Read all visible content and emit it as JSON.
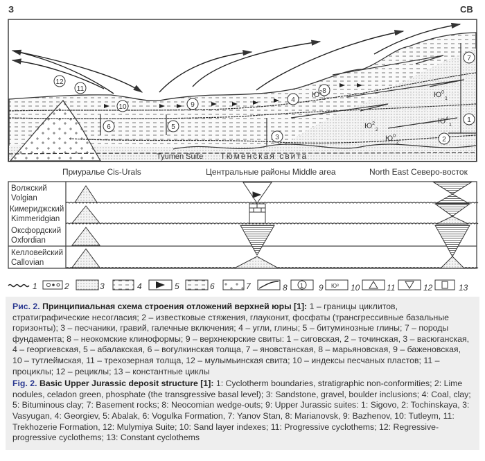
{
  "section": {
    "west_label": "З",
    "northeast_label": "СВ",
    "tyumen_en": "Tyumen Suite",
    "tyumen_ru": "Тюменская свита",
    "circled_labels": [
      "12",
      "11",
      "10",
      "9",
      "4",
      "8",
      "7",
      "1",
      "2",
      "3",
      "5",
      "6"
    ],
    "index_labels": [
      {
        "base": "Ю",
        "sup": "2",
        "sub": "1"
      },
      {
        "base": "Ю",
        "sup": "0",
        "sub": "1"
      },
      {
        "base": "Ю",
        "sup": "2",
        "sub": "2"
      },
      {
        "base": "Ю",
        "sup": "0",
        "sub": "2"
      },
      {
        "base": "Ю",
        "sup": "4",
        "sub": "1"
      }
    ]
  },
  "regions": {
    "cis_urals": "Приуралье Cis-Urals",
    "middle": "Центральные районы Middle area",
    "north_east": "North East Северо-восток"
  },
  "stages": [
    {
      "ru": "Волжский",
      "en": "Volgian"
    },
    {
      "ru": "Кимериджский",
      "en": "Kimmeridgian"
    },
    {
      "ru": "Оксфордский",
      "en": "Oxfordian"
    },
    {
      "ru": "Келловейский",
      "en": "Callovian"
    }
  ],
  "legend": [
    "1",
    "2",
    "3",
    "4",
    "5",
    "6",
    "7",
    "8",
    "9",
    "10",
    "11",
    "12",
    "13"
  ],
  "legend_glyphs": {
    "item9": "1",
    "item10": "Ю³"
  },
  "caption_ru": {
    "fig_no": "Рис. 2.",
    "title": "Принципиальная схема строения отложений верхней юры [1]:",
    "body": "1 – границы циклитов, стратиграфические несогласия; 2 – известковые стяжения, глауконит, фосфаты (трансгрессивные базальные горизонты); 3 – песчаники, гравий, галечные включения; 4 – угли, глины; 5 – битуминозные глины; 7 – породы фундамента; 8 – неокомские клиноформы; 9 – верхнеюрские свиты: 1 – сиговская, 2 – точинская, 3 – васюганская, 4 – георгиевская, 5 – абалакская, 6 – вогулкинская толща, 7 – яновстанская, 8 – марьяновская, 9 – баженовская, 10 – тутлеймская, 11 – трехозерная толща, 12 – мулымьинская свита; 10 – индексы песчаных пластов; 11 – проциклы; 12 – рециклы; 13 – константные циклы"
  },
  "caption_en": {
    "fig_no": "Fig. 2.",
    "title": "Basic Upper Jurassic deposit structure [1]:",
    "body": "1: Cyclotherm boundaries, stratigraphic non-conformities; 2: Lime nodules, celadon green, phosphate (the transgressive basal level); 3: Sandstone, gravel, boulder inclusions; 4: Coal, clay; 5: Bituminous clay; 7: Basement rocks; 8: Neocomian wedge-outs; 9: Upper Jurassic suites: 1: Sigovo, 2: Tochinskaya, 3: Vasyugan, 4: Georgiev, 5: Abalak, 6: Vogulka Formation, 7: Yanov Stan, 8: Marianovsk, 9: Bazhenov, 10: Tutleym, 11: Trekhozerie Formation, 12: Mulymiya Suite; 10: Sand layer indexes; 11: Progressive cyclothems; 12: Regressive-progressive cyclothems; 13: Constant cyclothems"
  },
  "colors": {
    "caption_bg": "#eeeeee",
    "fig_number": "#2b3990",
    "line": "#333333"
  }
}
